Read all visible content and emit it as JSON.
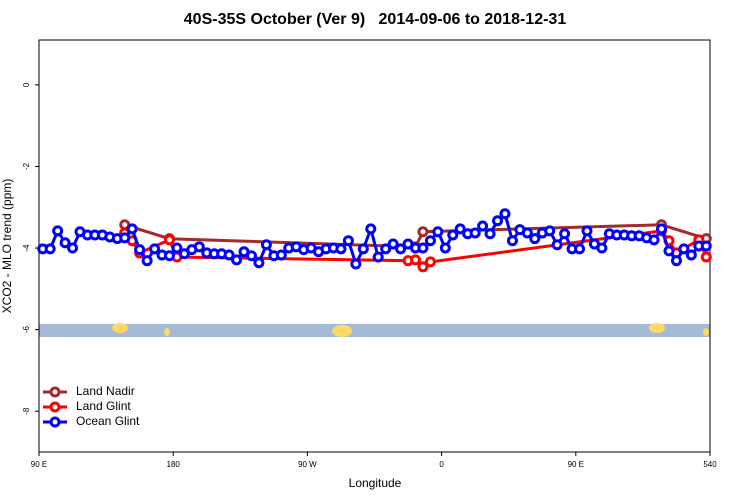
{
  "chart_data": {
    "type": "line",
    "title": "40S-35S October (Ver 9)   2014-09-06 to 2018-12-31",
    "x_label": "Longitude",
    "y_label": "XCO2 - MLO trend (ppm)",
    "xlim": [
      90,
      540
    ],
    "ylim": [
      -9.0,
      1.1
    ],
    "xticks": [
      {
        "value": 90,
        "label": "90 E"
      },
      180,
      {
        "value": 270,
        "label": "90 W"
      },
      {
        "value": 360,
        "label": "0"
      },
      {
        "value": 450,
        "label": "90 E"
      },
      540
    ],
    "yticks": [
      0,
      -2,
      -4,
      -6,
      -8
    ],
    "legend_position": "bottom-left",
    "series": [
      {
        "name": "Land Nadir",
        "color": "#a52a2a",
        "x": [
          147.5,
          177.5,
          342.5,
          347.5,
          507.5,
          537.5
        ],
        "values": [
          -3.43,
          -3.77,
          -3.97,
          -3.6,
          -3.43,
          -3.77
        ]
      },
      {
        "name": "Land Glint",
        "color": "#ff0000",
        "x": [
          147.5,
          152.5,
          157.5,
          177.5,
          182.5,
          337.5,
          342.5,
          347.5,
          352.5,
          507.5,
          512.5,
          517.5,
          532.5,
          537.5
        ],
        "values": [
          -3.63,
          -3.82,
          -4.12,
          -3.8,
          -4.22,
          -4.31,
          -4.29,
          -4.46,
          -4.34,
          -3.58,
          -3.82,
          -4.12,
          -3.8,
          -4.22
        ]
      },
      {
        "name": "Ocean Glint",
        "color": "#0000ff",
        "x": [
          92.5,
          97.5,
          102.5,
          107.5,
          112.5,
          117.5,
          122.5,
          127.5,
          132.5,
          137.5,
          142.5,
          147.5,
          152.5,
          157.5,
          162.5,
          167.5,
          172.5,
          177.5,
          182.5,
          187.5,
          192.5,
          197.5,
          202.5,
          207.5,
          212.5,
          217.5,
          222.5,
          227.5,
          232.5,
          237.5,
          242.5,
          247.5,
          252.5,
          257.5,
          262.5,
          267.5,
          272.5,
          277.5,
          282.5,
          287.5,
          292.5,
          297.5,
          302.5,
          307.5,
          312.5,
          317.5,
          322.5,
          327.5,
          332.5,
          337.5,
          342.5,
          347.5,
          352.5,
          357.5,
          362.5,
          367.5,
          372.5,
          377.5,
          382.5,
          387.5,
          392.5,
          397.5,
          402.5,
          407.5,
          412.5,
          417.5,
          422.5,
          427.5,
          432.5,
          437.5,
          442.5,
          447.5,
          452.5,
          457.5,
          462.5,
          467.5,
          472.5,
          477.5,
          482.5,
          487.5,
          492.5,
          497.5,
          502.5,
          507.5,
          512.5,
          517.5,
          522.5,
          527.5,
          532.5,
          537.5
        ],
        "values": [
          -4.02,
          -4.02,
          -3.58,
          -3.87,
          -4.0,
          -3.6,
          -3.68,
          -3.68,
          -3.68,
          -3.73,
          -3.77,
          -3.75,
          -3.53,
          -4.04,
          -4.31,
          -4.02,
          -4.17,
          -4.19,
          -4.0,
          -4.14,
          -4.04,
          -3.97,
          -4.12,
          -4.14,
          -4.14,
          -4.17,
          -4.29,
          -4.09,
          -4.19,
          -4.36,
          -3.92,
          -4.19,
          -4.17,
          -4.0,
          -3.97,
          -4.04,
          -4.0,
          -4.09,
          -4.02,
          -4.0,
          -4.02,
          -3.82,
          -4.39,
          -4.02,
          -3.53,
          -4.22,
          -4.02,
          -3.9,
          -4.02,
          -3.9,
          -4.0,
          -4.0,
          -3.82,
          -3.6,
          -4.0,
          -3.68,
          -3.53,
          -3.65,
          -3.63,
          -3.46,
          -3.65,
          -3.33,
          -3.16,
          -3.82,
          -3.55,
          -3.63,
          -3.77,
          -3.63,
          -3.58,
          -3.92,
          -3.65,
          -4.02,
          -4.02,
          -3.58,
          -3.9,
          -4.0,
          -3.65,
          -3.68,
          -3.68,
          -3.7,
          -3.7,
          -3.75,
          -3.8,
          -3.53,
          -4.07,
          -4.31,
          -4.02,
          -4.17,
          -3.95,
          -3.95
        ]
      }
    ]
  }
}
